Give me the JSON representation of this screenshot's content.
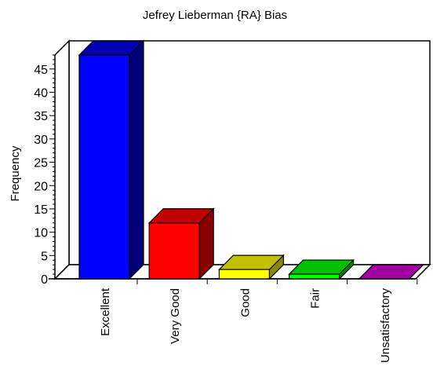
{
  "chart_data": {
    "type": "bar",
    "title": "Jefrey Lieberman {RA} Bias",
    "xlabel": "",
    "ylabel": "Frequency",
    "categories": [
      "Excellent",
      "Very Good",
      "Good",
      "Fair",
      "Unsatisfactory"
    ],
    "values": [
      48,
      12,
      2,
      1,
      0
    ],
    "ylim": [
      0,
      48
    ],
    "yticks": [
      0,
      5,
      10,
      15,
      20,
      25,
      30,
      35,
      40,
      45
    ],
    "grid": false,
    "legend": "none",
    "three_d": true,
    "colors": {
      "front": [
        "#0000ff",
        "#ff0000",
        "#ffff00",
        "#00ff00",
        "#cc00cc"
      ],
      "top": [
        "#0000b0",
        "#c00000",
        "#c0c000",
        "#00c000",
        "#a000a0"
      ],
      "side": [
        "#00007a",
        "#8a0000",
        "#8a8a00",
        "#008800",
        "#700070"
      ]
    }
  }
}
